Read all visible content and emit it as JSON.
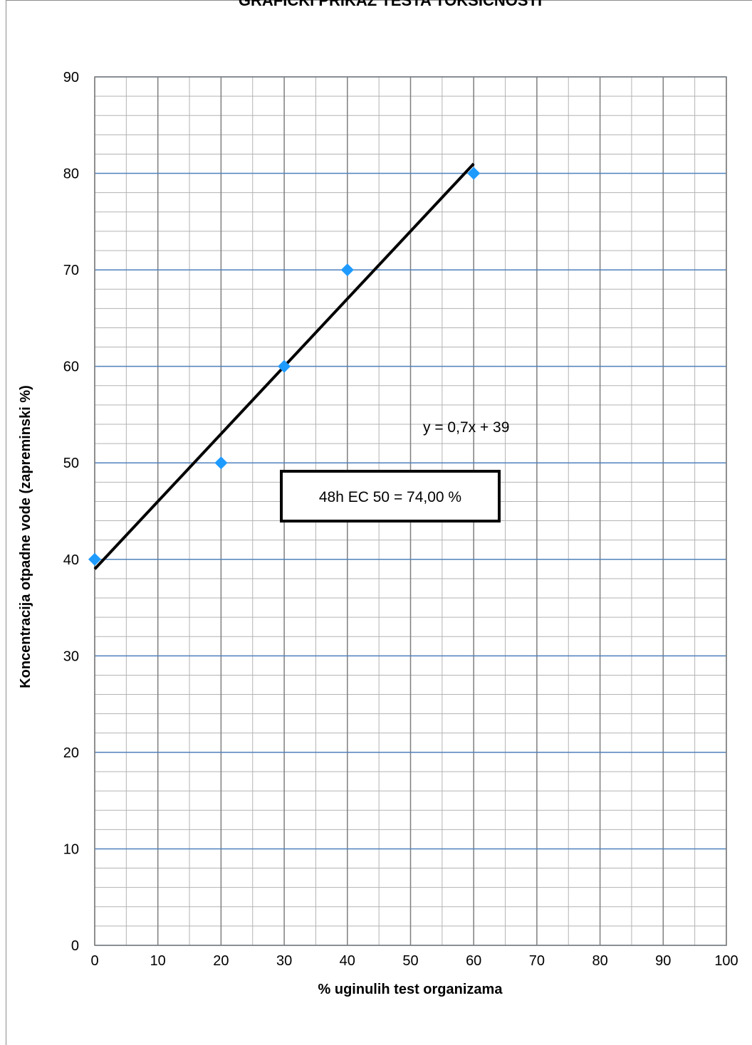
{
  "chart_data": {
    "type": "scatter",
    "title": "GRAFIČKI PRIKAZ TESTA TOKSIČNOSTI",
    "xlabel": "% uginulih test organizama",
    "ylabel": "Koncentracija otpadne vode (zapreminski %)",
    "xlim": [
      0,
      100
    ],
    "ylim": [
      0,
      90
    ],
    "x_ticks": [
      0,
      10,
      20,
      30,
      40,
      50,
      60,
      70,
      80,
      90,
      100
    ],
    "y_ticks": [
      0,
      10,
      20,
      30,
      40,
      50,
      60,
      70,
      80,
      90
    ],
    "x_minor_step": 5,
    "y_minor_step": 2,
    "grid": true,
    "series": [
      {
        "points": [
          {
            "x": 0,
            "y": 40
          },
          {
            "x": 20,
            "y": 50
          },
          {
            "x": 30,
            "y": 60
          },
          {
            "x": 40,
            "y": 70
          },
          {
            "x": 60,
            "y": 80
          }
        ],
        "color": "#1e9bff",
        "marker": "diamond"
      }
    ],
    "trendline": {
      "slope": 0.7,
      "intercept": 39,
      "x_range": [
        0,
        60
      ],
      "color": "#000000",
      "equation_label": "y = 0,7x + 39"
    },
    "annotation_box": "48h EC 50 = 74,00 %",
    "colors": {
      "major_grid_horizontal": "#4f81bd",
      "major_grid_vertical": "#7f7f7f",
      "minor_grid": "#b3b3b3"
    }
  }
}
